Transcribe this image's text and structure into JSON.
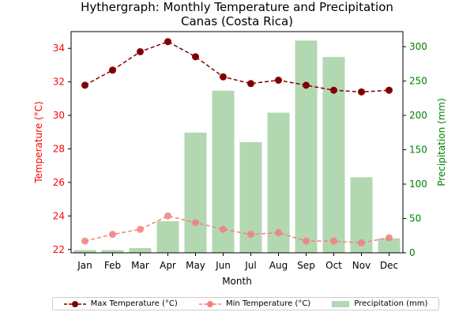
{
  "chart_data": {
    "type": "bar+line",
    "title": "Hythergraph: Monthly Temperature and Precipitation",
    "subtitle": "Canas (Costa Rica)",
    "xlabel": "Month",
    "ylabel_left": "Temperature (°C)",
    "ylabel_right": "Precipitation (mm)",
    "categories": [
      "Jan",
      "Feb",
      "Mar",
      "Apr",
      "May",
      "Jun",
      "Jul",
      "Aug",
      "Sep",
      "Oct",
      "Nov",
      "Dec"
    ],
    "ylim_left": [
      21.8,
      35.0
    ],
    "yticks_left": [
      22,
      24,
      26,
      28,
      30,
      32,
      34
    ],
    "ylim_right": [
      0,
      322
    ],
    "yticks_right": [
      0,
      50,
      100,
      150,
      200,
      250,
      300
    ],
    "series": [
      {
        "name": "Max Temperature (°C)",
        "kind": "line",
        "axis": "left",
        "color": "#800000",
        "dash": "dashed",
        "values": [
          31.8,
          32.7,
          33.8,
          34.4,
          33.5,
          32.3,
          31.9,
          32.1,
          31.8,
          31.5,
          31.4,
          31.5
        ]
      },
      {
        "name": "Min Temperature (°C)",
        "kind": "line",
        "axis": "left",
        "color": "#f08080",
        "dash": "dashed",
        "values": [
          22.5,
          22.9,
          23.2,
          24.0,
          23.6,
          23.2,
          22.9,
          23.0,
          22.5,
          22.5,
          22.4,
          22.7
        ]
      },
      {
        "name": "Precipitation (mm)",
        "kind": "bar",
        "axis": "right",
        "color": "#b2d8b2",
        "values": [
          4,
          4,
          7,
          46,
          175,
          236,
          161,
          204,
          309,
          285,
          110,
          21
        ]
      }
    ],
    "grid": false,
    "legend_position": "bottom",
    "colors": {
      "left_axis": "#ff0000",
      "right_axis": "#008000"
    }
  }
}
